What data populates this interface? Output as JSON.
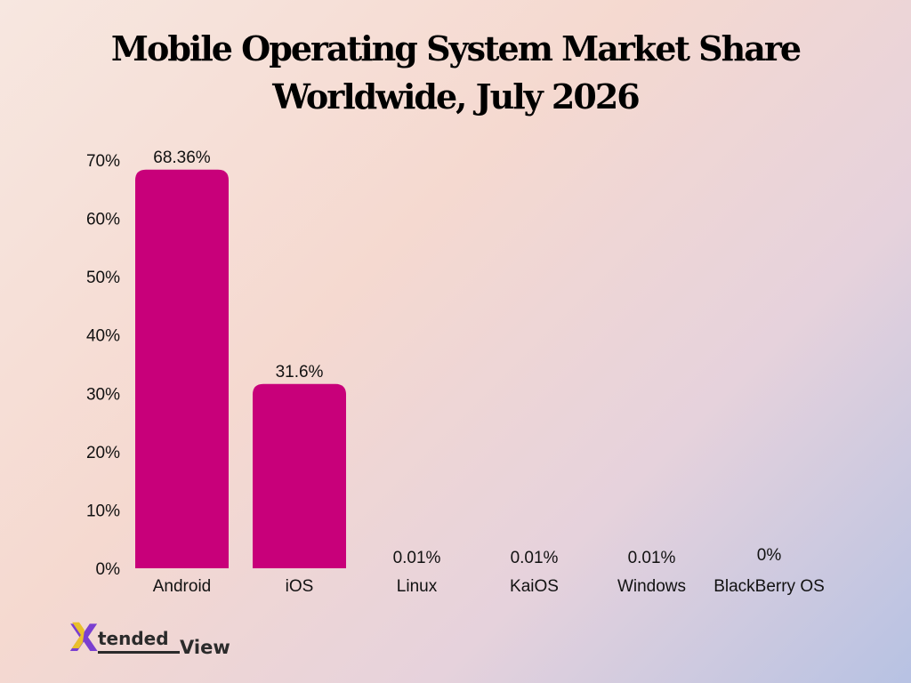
{
  "chart_data": {
    "type": "bar",
    "title_line1": "Mobile Operating System Market Share",
    "title_line2": "Worldwide, July 2026",
    "categories": [
      "Android",
      "iOS",
      "Linux",
      "KaiOS",
      "Windows",
      "BlackBerry OS"
    ],
    "values": [
      68.36,
      31.6,
      0.01,
      0.01,
      0.01,
      0
    ],
    "value_labels": [
      "68.36%",
      "31.6%",
      "0.01%",
      "0.01%",
      "0.01%",
      "0%"
    ],
    "y_ticks": [
      "0%",
      "10%",
      "20%",
      "30%",
      "40%",
      "50%",
      "60%",
      "70%"
    ],
    "y_tick_values": [
      0,
      10,
      20,
      30,
      40,
      50,
      60,
      70
    ],
    "ylim": [
      0,
      70
    ],
    "grid": false,
    "legend": "none",
    "bar_color": "#c8007a"
  },
  "logo": {
    "mark": "X",
    "text1": "tended",
    "text2": "View"
  }
}
